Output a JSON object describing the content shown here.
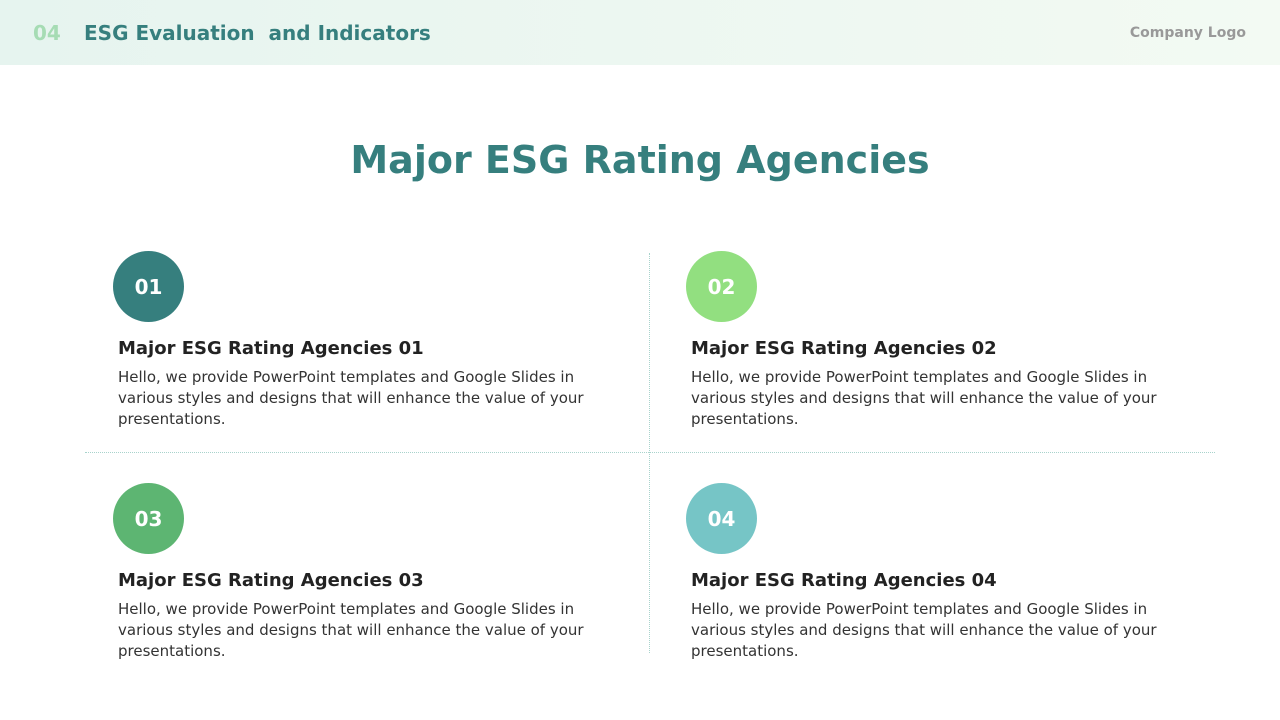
{
  "header": {
    "number": "04",
    "title": "ESG Evaluation  and Indicators",
    "logo": "Company Logo"
  },
  "title": "Major ESG Rating Agencies",
  "items": [
    {
      "number": "01",
      "heading": "Major ESG Rating Agencies 01",
      "text": "Hello, we provide PowerPoint templates and Google Slides in various styles and designs that will enhance the value of your presentations."
    },
    {
      "number": "02",
      "heading": "Major ESG Rating Agencies 02",
      "text": "Hello, we provide PowerPoint templates and Google Slides in various styles and designs that will enhance the value of your presentations."
    },
    {
      "number": "03",
      "heading": "Major ESG Rating Agencies 03",
      "text": "Hello, we provide PowerPoint templates and Google Slides in various styles and designs that will enhance the value of your presentations."
    },
    {
      "number": "04",
      "heading": "Major ESG Rating Agencies 04",
      "text": "Hello, we provide PowerPoint templates and Google Slides in various styles and designs that will enhance the value of your presentations."
    }
  ]
}
